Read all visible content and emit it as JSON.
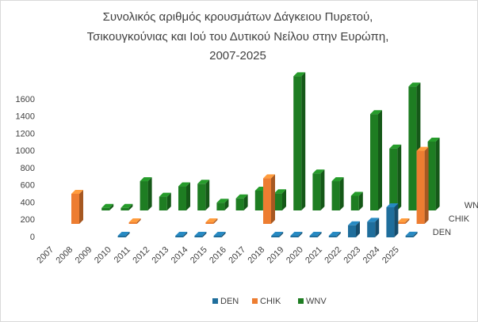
{
  "chart_data": {
    "type": "bar3d",
    "title": [
      "Συνολικός αριθμός κρουσμάτων Δάγκειου Πυρετού,",
      "Τσικουγκούνιας και Ιού του Δυτικού Νείλου στην Ευρώπη,",
      "2007-2025"
    ],
    "categories": [
      "2007",
      "2008",
      "2009",
      "2010",
      "2011",
      "2012",
      "2013",
      "2014",
      "2015",
      "2016",
      "2017",
      "2018",
      "2019",
      "2020",
      "2021",
      "2022",
      "2023",
      "2024",
      "2025"
    ],
    "series": [
      {
        "name": "DEN",
        "color": "#1f6e9c",
        "values": [
          0,
          0,
          0,
          10,
          0,
          0,
          10,
          10,
          10,
          0,
          0,
          10,
          10,
          10,
          5,
          140,
          180,
          350,
          20
        ]
      },
      {
        "name": "CHIK",
        "color": "#ed7d31",
        "values": [
          350,
          0,
          0,
          10,
          0,
          0,
          0,
          10,
          0,
          0,
          530,
          0,
          0,
          0,
          0,
          0,
          0,
          10,
          850
        ]
      },
      {
        "name": "WNV",
        "color": "#1e7d22",
        "values": [
          0,
          30,
          30,
          340,
          160,
          280,
          310,
          90,
          140,
          230,
          200,
          1560,
          430,
          340,
          170,
          1120,
          720,
          1440,
          800
        ]
      }
    ],
    "ylim": [
      0,
      1600
    ],
    "yticks": [
      0,
      200,
      400,
      600,
      800,
      1000,
      1200,
      1400,
      1600
    ],
    "legend": "bottom"
  }
}
